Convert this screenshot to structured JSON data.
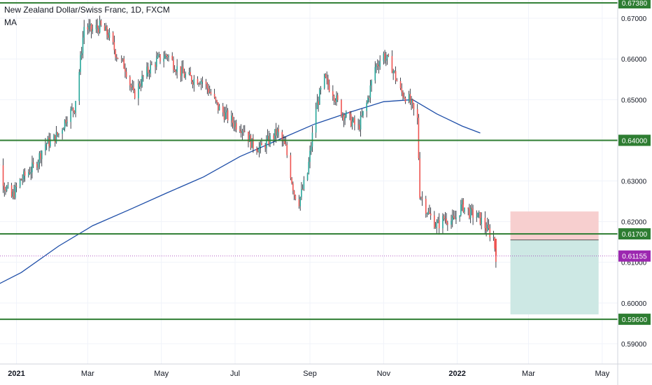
{
  "header": {
    "title": "New Zealand Dollar/Swiss Franc, 1D, FXCM",
    "study": "MA"
  },
  "colors": {
    "up_candle": "#26a69a",
    "down_candle": "#ef5350",
    "candle_wick": "#131722",
    "ma_line": "#1e4ea8",
    "level_line": "#2e7d32",
    "level_label_bg": "#2e7d32",
    "current_price_bg": "#9c27b0",
    "stop_zone": "#f7cfcf",
    "target_zone": "#cde8e4",
    "grid": "#f0f3fa",
    "axis_text": "#131722"
  },
  "chart_data": {
    "type": "candlestick",
    "title": "New Zealand Dollar/Swiss Franc, 1D, FXCM",
    "indicator": "MA",
    "y_axis": {
      "range": [
        0.585,
        0.6745
      ],
      "ticks": [
        "0.67000",
        "0.66000",
        "0.65000",
        "0.64000",
        "0.63000",
        "0.62000",
        "0.61000",
        "0.60000",
        "0.59000"
      ]
    },
    "x_axis": {
      "ticks": [
        "2021",
        "Mar",
        "May",
        "Jul",
        "Sep",
        "Nov",
        "2022",
        "Mar",
        "May"
      ]
    },
    "horizontal_levels": [
      {
        "value": 0.6738,
        "label": "0.67380"
      },
      {
        "value": 0.64,
        "label": "0.64000"
      },
      {
        "value": 0.617,
        "label": "0.61700"
      },
      {
        "value": 0.596,
        "label": "0.59600"
      }
    ],
    "current_price": {
      "value": 0.61155,
      "label": "0.61155"
    },
    "position": {
      "type": "short",
      "entry": 0.6155,
      "stop": 0.6225,
      "target": 0.5972
    },
    "price_path": [
      [
        "2020-12-10",
        0.638
      ],
      [
        "2020-12-16",
        0.636
      ],
      [
        "2020-12-22",
        0.629
      ],
      [
        "2020-12-28",
        0.626
      ],
      [
        "2021-01-04",
        0.63
      ],
      [
        "2021-01-10",
        0.632
      ],
      [
        "2021-01-17",
        0.634
      ],
      [
        "2021-01-24",
        0.639
      ],
      [
        "2021-01-31",
        0.64
      ],
      [
        "2021-02-06",
        0.642
      ],
      [
        "2021-02-12",
        0.646
      ],
      [
        "2021-02-18",
        0.648
      ],
      [
        "2021-02-22",
        0.657
      ],
      [
        "2021-02-26",
        0.668
      ],
      [
        "2021-03-04",
        0.667
      ],
      [
        "2021-03-11",
        0.668
      ],
      [
        "2021-03-18",
        0.666
      ],
      [
        "2021-03-25",
        0.661
      ],
      [
        "2021-04-01",
        0.658
      ],
      [
        "2021-04-08",
        0.651
      ],
      [
        "2021-04-15",
        0.655
      ],
      [
        "2021-04-22",
        0.658
      ],
      [
        "2021-04-29",
        0.66
      ],
      [
        "2021-05-06",
        0.661
      ],
      [
        "2021-05-13",
        0.658
      ],
      [
        "2021-05-20",
        0.656
      ],
      [
        "2021-05-27",
        0.655
      ],
      [
        "2021-06-03",
        0.655
      ],
      [
        "2021-06-10",
        0.652
      ],
      [
        "2021-06-17",
        0.648
      ],
      [
        "2021-06-24",
        0.646
      ],
      [
        "2021-07-01",
        0.644
      ],
      [
        "2021-07-08",
        0.643
      ],
      [
        "2021-07-15",
        0.639
      ],
      [
        "2021-07-22",
        0.638
      ],
      [
        "2021-07-29",
        0.64
      ],
      [
        "2021-08-05",
        0.642
      ],
      [
        "2021-08-12",
        0.638
      ],
      [
        "2021-08-19",
        0.627
      ],
      [
        "2021-08-23",
        0.625
      ],
      [
        "2021-08-30",
        0.632
      ],
      [
        "2021-09-06",
        0.648
      ],
      [
        "2021-09-13",
        0.655
      ],
      [
        "2021-09-20",
        0.652
      ],
      [
        "2021-09-27",
        0.647
      ],
      [
        "2021-10-04",
        0.645
      ],
      [
        "2021-10-11",
        0.643
      ],
      [
        "2021-10-18",
        0.649
      ],
      [
        "2021-10-25",
        0.658
      ],
      [
        "2021-11-01",
        0.661
      ],
      [
        "2021-11-08",
        0.658
      ],
      [
        "2021-11-15",
        0.652
      ],
      [
        "2021-11-22",
        0.65
      ],
      [
        "2021-11-29",
        0.645
      ],
      [
        "2021-12-01",
        0.627
      ],
      [
        "2021-12-08",
        0.622
      ],
      [
        "2021-12-15",
        0.619
      ],
      [
        "2021-12-22",
        0.621
      ],
      [
        "2021-12-29",
        0.62
      ],
      [
        "2022-01-05",
        0.624
      ],
      [
        "2022-01-12",
        0.622
      ],
      [
        "2022-01-19",
        0.621
      ],
      [
        "2022-01-26",
        0.618
      ],
      [
        "2022-01-31",
        0.616
      ],
      [
        "2022-02-02",
        0.6116
      ]
    ],
    "ma_path": [
      [
        "2020-12-05",
        0.6028
      ],
      [
        "2021-01-05",
        0.6075
      ],
      [
        "2021-02-05",
        0.614
      ],
      [
        "2021-03-05",
        0.619
      ],
      [
        "2021-04-05",
        0.623
      ],
      [
        "2021-05-05",
        0.627
      ],
      [
        "2021-06-05",
        0.631
      ],
      [
        "2021-07-05",
        0.636
      ],
      [
        "2021-08-05",
        0.64
      ],
      [
        "2021-09-05",
        0.644
      ],
      [
        "2021-10-05",
        0.647
      ],
      [
        "2021-11-01",
        0.6495
      ],
      [
        "2021-11-25",
        0.65
      ],
      [
        "2021-12-15",
        0.6465
      ],
      [
        "2022-01-05",
        0.6435
      ],
      [
        "2022-01-20",
        0.6418
      ]
    ]
  }
}
